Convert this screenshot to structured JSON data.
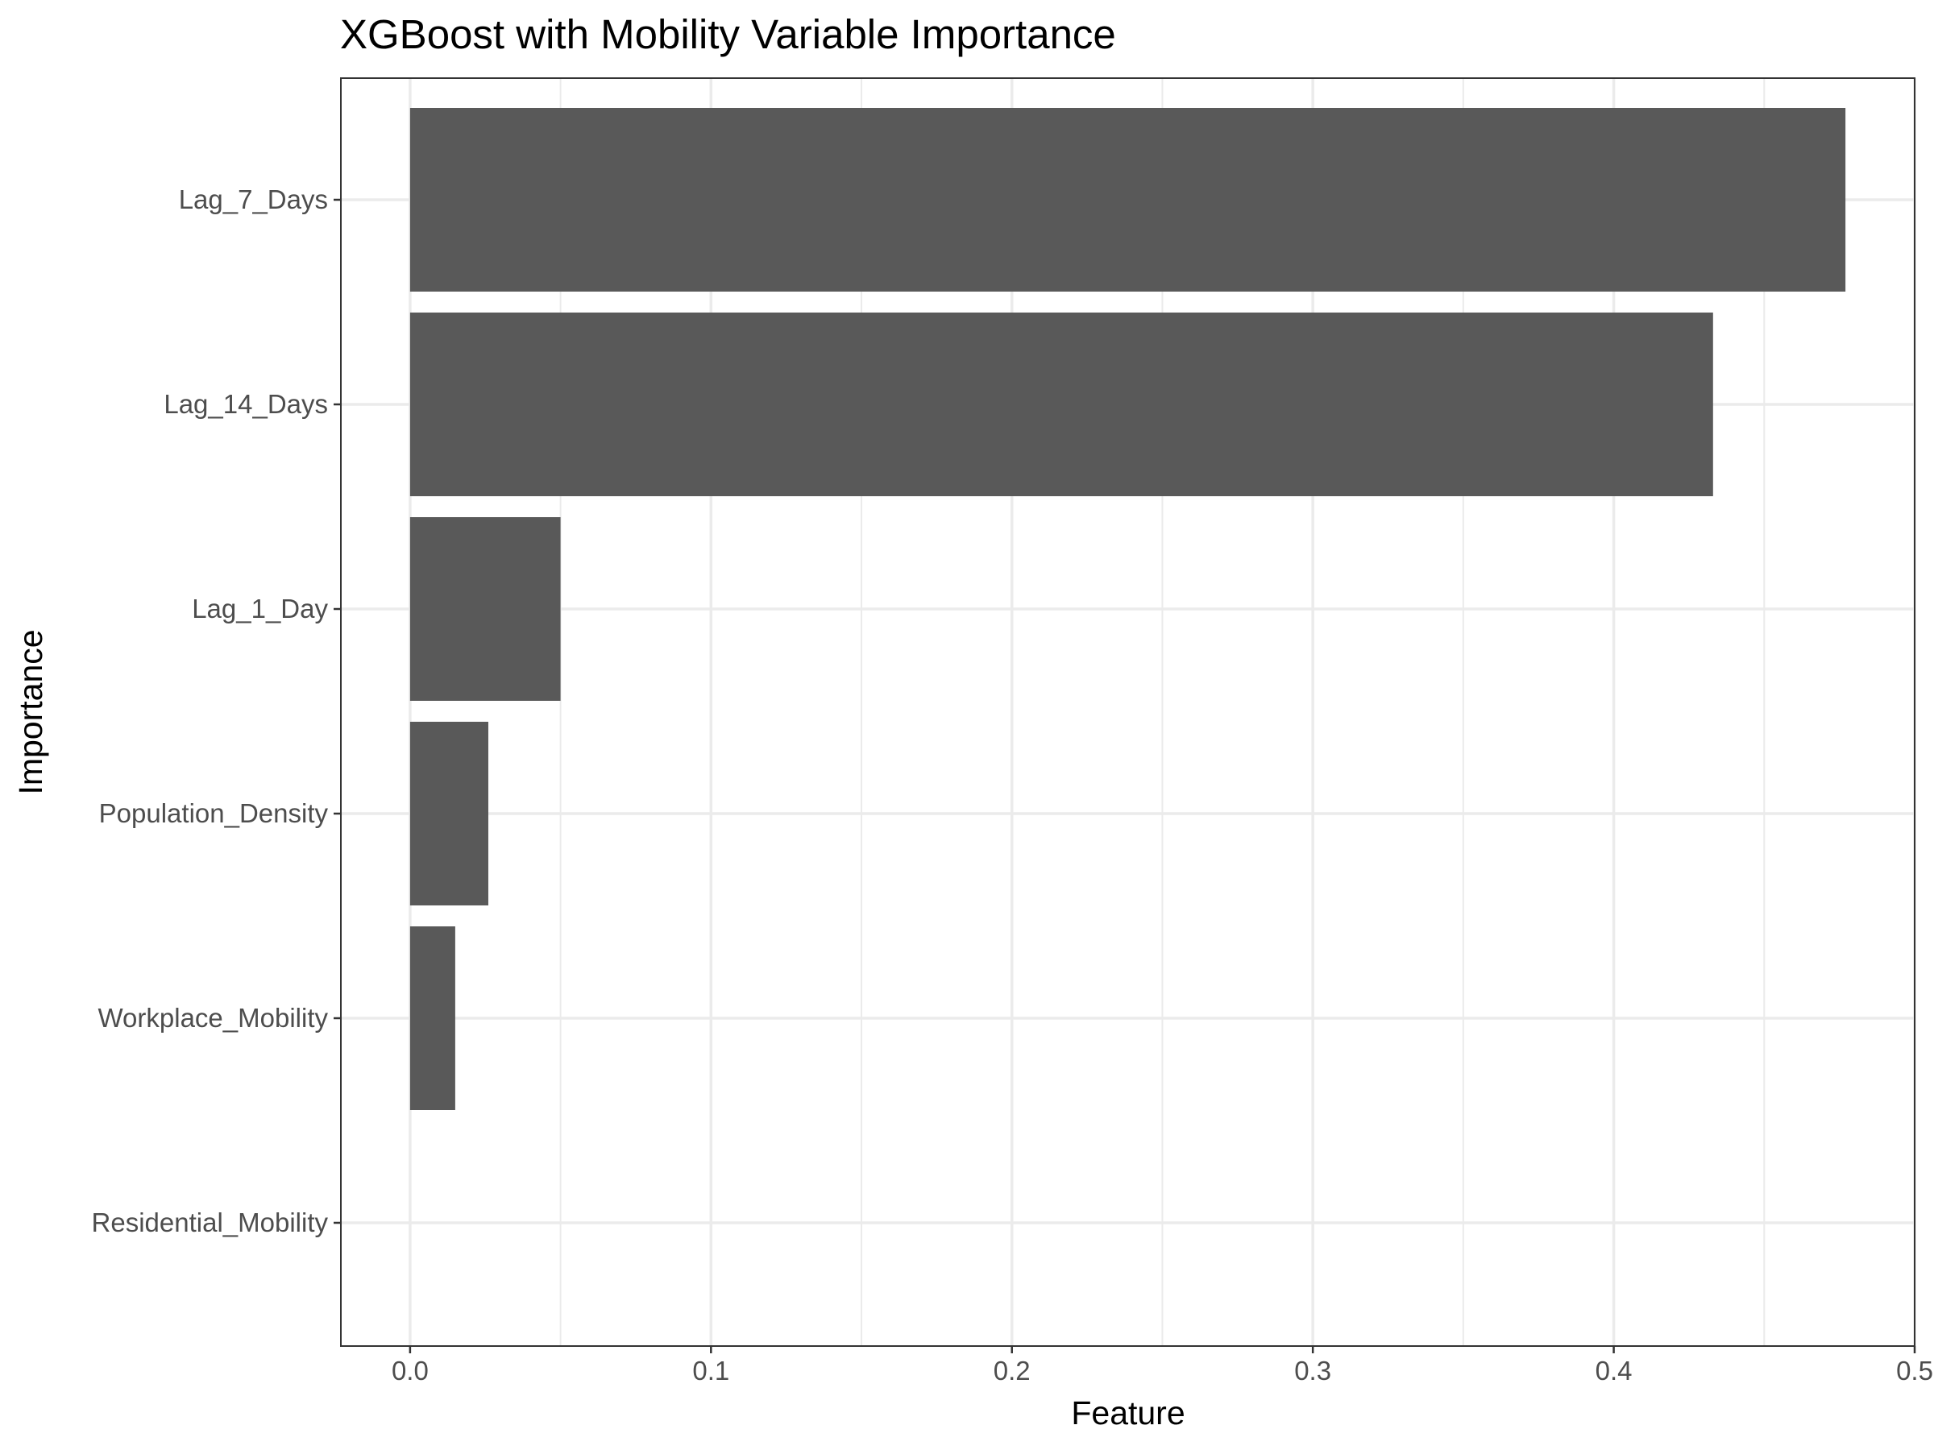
{
  "chart_data": {
    "type": "bar",
    "orientation": "horizontal",
    "title": "XGBoost with Mobility Variable Importance",
    "xlabel": "Feature",
    "ylabel": "Importance",
    "categories": [
      "Lag_7_Days",
      "Lag_14_Days",
      "Lag_1_Day",
      "Population_Density",
      "Workplace_Mobility",
      "Residential_Mobility"
    ],
    "values": [
      0.477,
      0.433,
      0.05,
      0.026,
      0.015,
      0.0
    ],
    "xlim": [
      -0.023,
      0.5
    ],
    "xticks": [
      "0.0",
      "0.1",
      "0.2",
      "0.3",
      "0.4",
      "0.5"
    ],
    "grid": true,
    "legend": "none",
    "colors": {
      "bar": "#595959",
      "grid": "#ebebeb",
      "panel_border": "#333333",
      "tick_text": "#4d4d4d"
    }
  }
}
